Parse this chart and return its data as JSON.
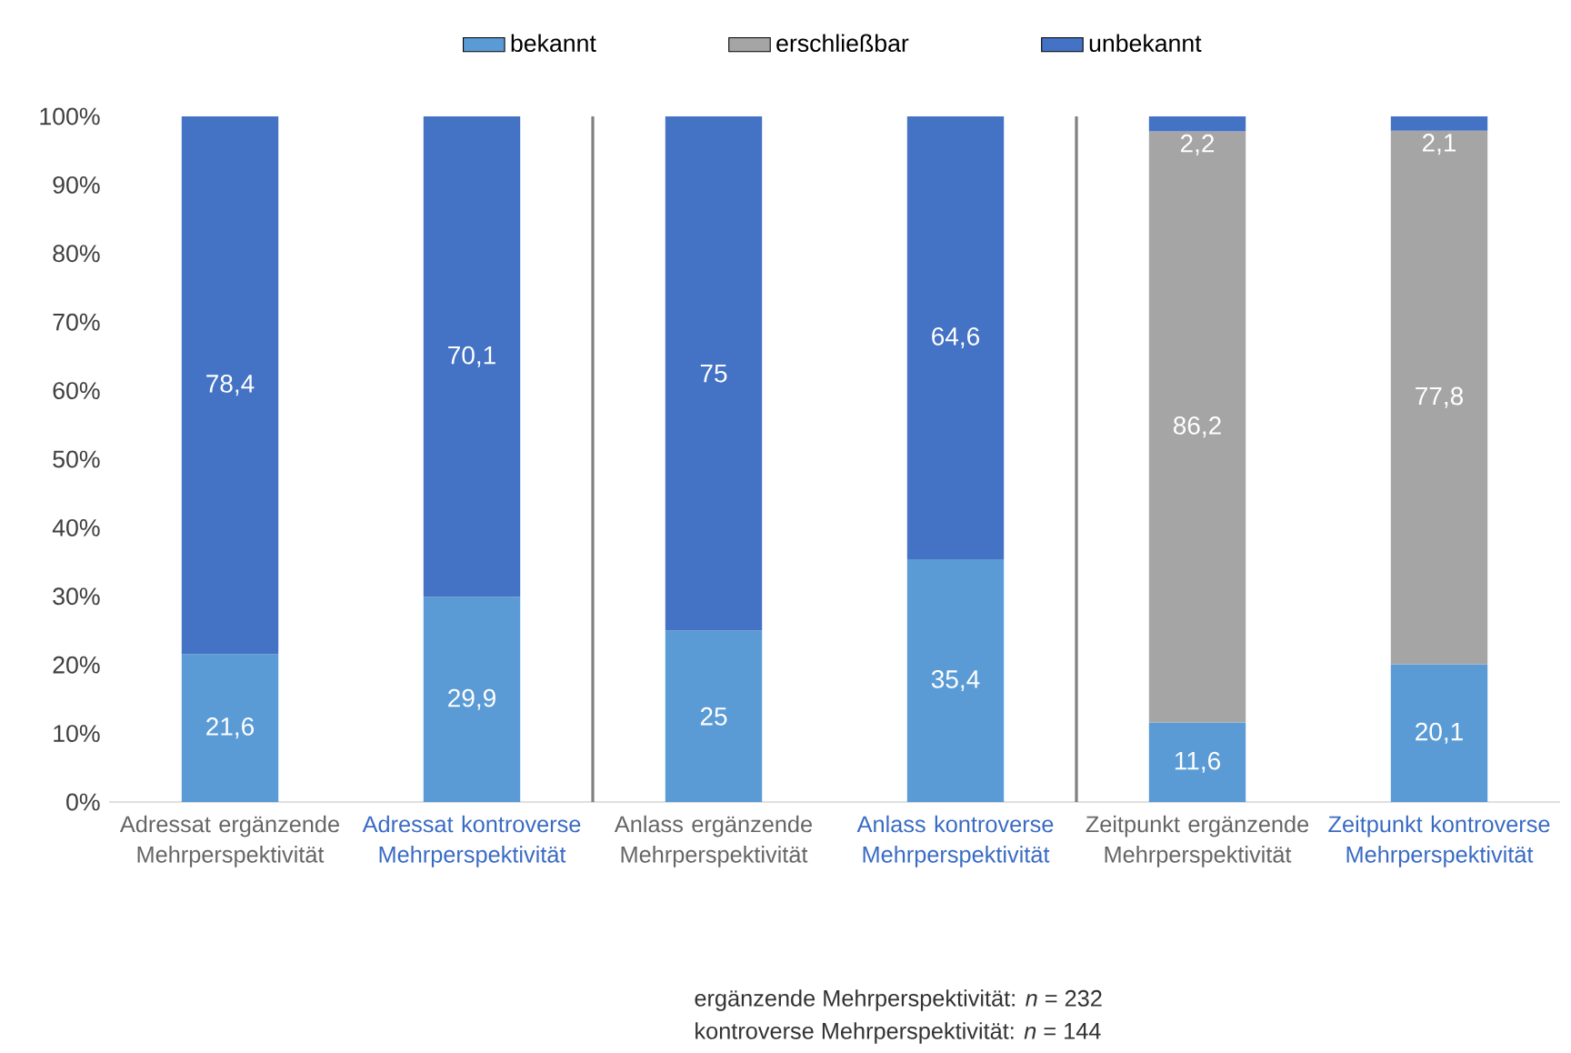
{
  "chart_data": {
    "type": "bar",
    "stacked": true,
    "categories": [
      "Adressat ergänzende Mehrperspektivität",
      "Adressat kontroverse Mehrperspektivität",
      "Anlass ergänzende Mehrperspektivität",
      "Anlass kontroverse Mehrperspektivität",
      "Zeitpunkt ergänzende Mehrperspektivität",
      "Zeitpunkt kontroverse Mehrperspektivität"
    ],
    "series": [
      {
        "name": "bekannt",
        "color": "#5b9bd5",
        "values": [
          21.6,
          29.9,
          25,
          35.4,
          11.6,
          20.1
        ],
        "value_labels": [
          "21,6",
          "29,9",
          "25",
          "35,4",
          "11,6",
          "20,1"
        ]
      },
      {
        "name": "erschließbar",
        "color": "#a5a5a5",
        "values": [
          null,
          null,
          null,
          null,
          86.2,
          77.8
        ],
        "value_labels": [
          null,
          null,
          null,
          null,
          "86,2",
          "77,8"
        ]
      },
      {
        "name": "unbekannt",
        "color": "#4472c4",
        "values": [
          78.4,
          70.1,
          75,
          64.6,
          2.2,
          2.1
        ],
        "value_labels": [
          "78,4",
          "70,1",
          "75",
          "64,6",
          "2,2",
          "2,1"
        ]
      }
    ],
    "ylim": [
      0,
      100
    ],
    "yticks": [
      {
        "value": 0,
        "label": "0%"
      },
      {
        "value": 10,
        "label": "10%"
      },
      {
        "value": 20,
        "label": "20%"
      },
      {
        "value": 30,
        "label": "30%"
      },
      {
        "value": 40,
        "label": "40%"
      },
      {
        "value": 50,
        "label": "50%"
      },
      {
        "value": 60,
        "label": "60%"
      },
      {
        "value": 70,
        "label": "70%"
      },
      {
        "value": 80,
        "label": "80%"
      },
      {
        "value": 90,
        "label": "90%"
      },
      {
        "value": 100,
        "label": "100%"
      }
    ],
    "legend": "top",
    "annotations": [
      "ergänzende Mehrperspektivität: *n* = 232",
      "kontroverse Mehrperspektivität: *n* = 144"
    ]
  }
}
